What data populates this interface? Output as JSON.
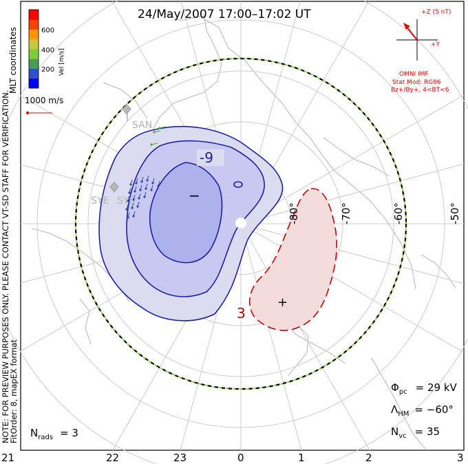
{
  "title": "24/May/2007 17:00–17:02 UT",
  "colorbar": {
    "unit_label": "Vel [m/s]",
    "ticks": [
      "600",
      "400",
      "200"
    ],
    "colors": [
      "#0000ff",
      "#3050c8",
      "#4a9a5a",
      "#7ccc3c",
      "#c8c83c",
      "#ff9600",
      "#ff4000",
      "#ff0000"
    ]
  },
  "coord_label": "MLT coordinates",
  "vector_scale": "1000 m/s",
  "imf": {
    "z_label": "+Z (5 nT)",
    "y_label": "+Y",
    "source": "OMNI IMF",
    "stat_mod": "Stat Mod: RG96",
    "condition": "Bz+/By+, 4<BT<6"
  },
  "notes": {
    "preview": "NOTE: FOR PREVIEW PURPOSES ONLY. PLEASE CONTACT VT-SD STAFF FOR VERIFICATION.",
    "fit": "FitOrder: 8, mapEX format"
  },
  "stats": {
    "phi_sym": "Φ",
    "phi_sub": "pc",
    "phi_val": "= 29 kV",
    "lambda_sym": "Λ",
    "lambda_sub": "HM",
    "lambda_val": "= −60°",
    "nvc_sym": "N",
    "nvc_sub": "vc",
    "nvc_val": "= 35",
    "nrads_sym": "N",
    "nrads_sub": "rads",
    "nrads_val": "= 3"
  },
  "lat_labels": [
    "-80°",
    "-70°",
    "-60°",
    "-50°"
  ],
  "mlt_labels": [
    "21",
    "22",
    "23",
    "0",
    "1",
    "2",
    "3"
  ],
  "radars": [
    "SAN",
    "SYE",
    "SYS"
  ],
  "contours": {
    "neg_label": "-9",
    "pos_label": "3"
  },
  "extrema": {
    "min": "−",
    "max": "+"
  }
}
